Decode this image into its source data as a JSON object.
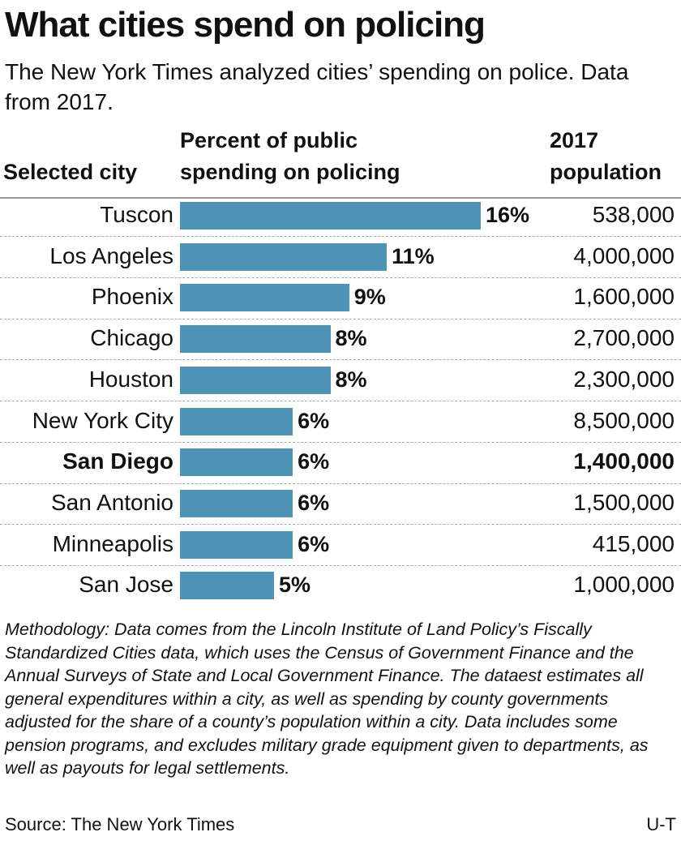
{
  "chart_data": {
    "type": "bar",
    "title": "What cities spend on policing",
    "subtitle": "The New York Times analyzed cities’ spending on police. Data from 2017.",
    "category_header": "Selected city",
    "value_header": "Percent of public spending on policing",
    "extra_header": "2017 population",
    "categories": [
      "Tuscon",
      "Los Angeles",
      "Phoenix",
      "Chicago",
      "Houston",
      "New York City",
      "San Diego",
      "San Antonio",
      "Minneapolis",
      "San Jose"
    ],
    "values": [
      16,
      11,
      9,
      8,
      8,
      6,
      6,
      6,
      6,
      5
    ],
    "value_labels": [
      "16%",
      "11%",
      "9%",
      "8%",
      "8%",
      "6%",
      "6%",
      "6%",
      "6%",
      "5%"
    ],
    "population": [
      "538,000",
      "4,000,000",
      "1,600,000",
      "2,700,000",
      "2,300,000",
      "8,500,000",
      "1,400,000",
      "1,500,000",
      "415,000",
      "1,000,000"
    ],
    "highlight_index": 6,
    "color": "#4e93b5",
    "note": "Methodology: Data comes from the Lincoln Institute of Land Policy’s Fiscally Standardized Cities data, which uses the Census of Government Finance and the Annual Surveys of State and Local Government Finance. The dataest estimates all general expenditures within a city, as well as spending by county governments adjusted for the share of a county’s population within a city. Data includes some pension programs, and excludes military grade equipment given to departments, as well as payouts for legal settlements.",
    "source": "Source: The New York Times",
    "credit": "U-T"
  }
}
